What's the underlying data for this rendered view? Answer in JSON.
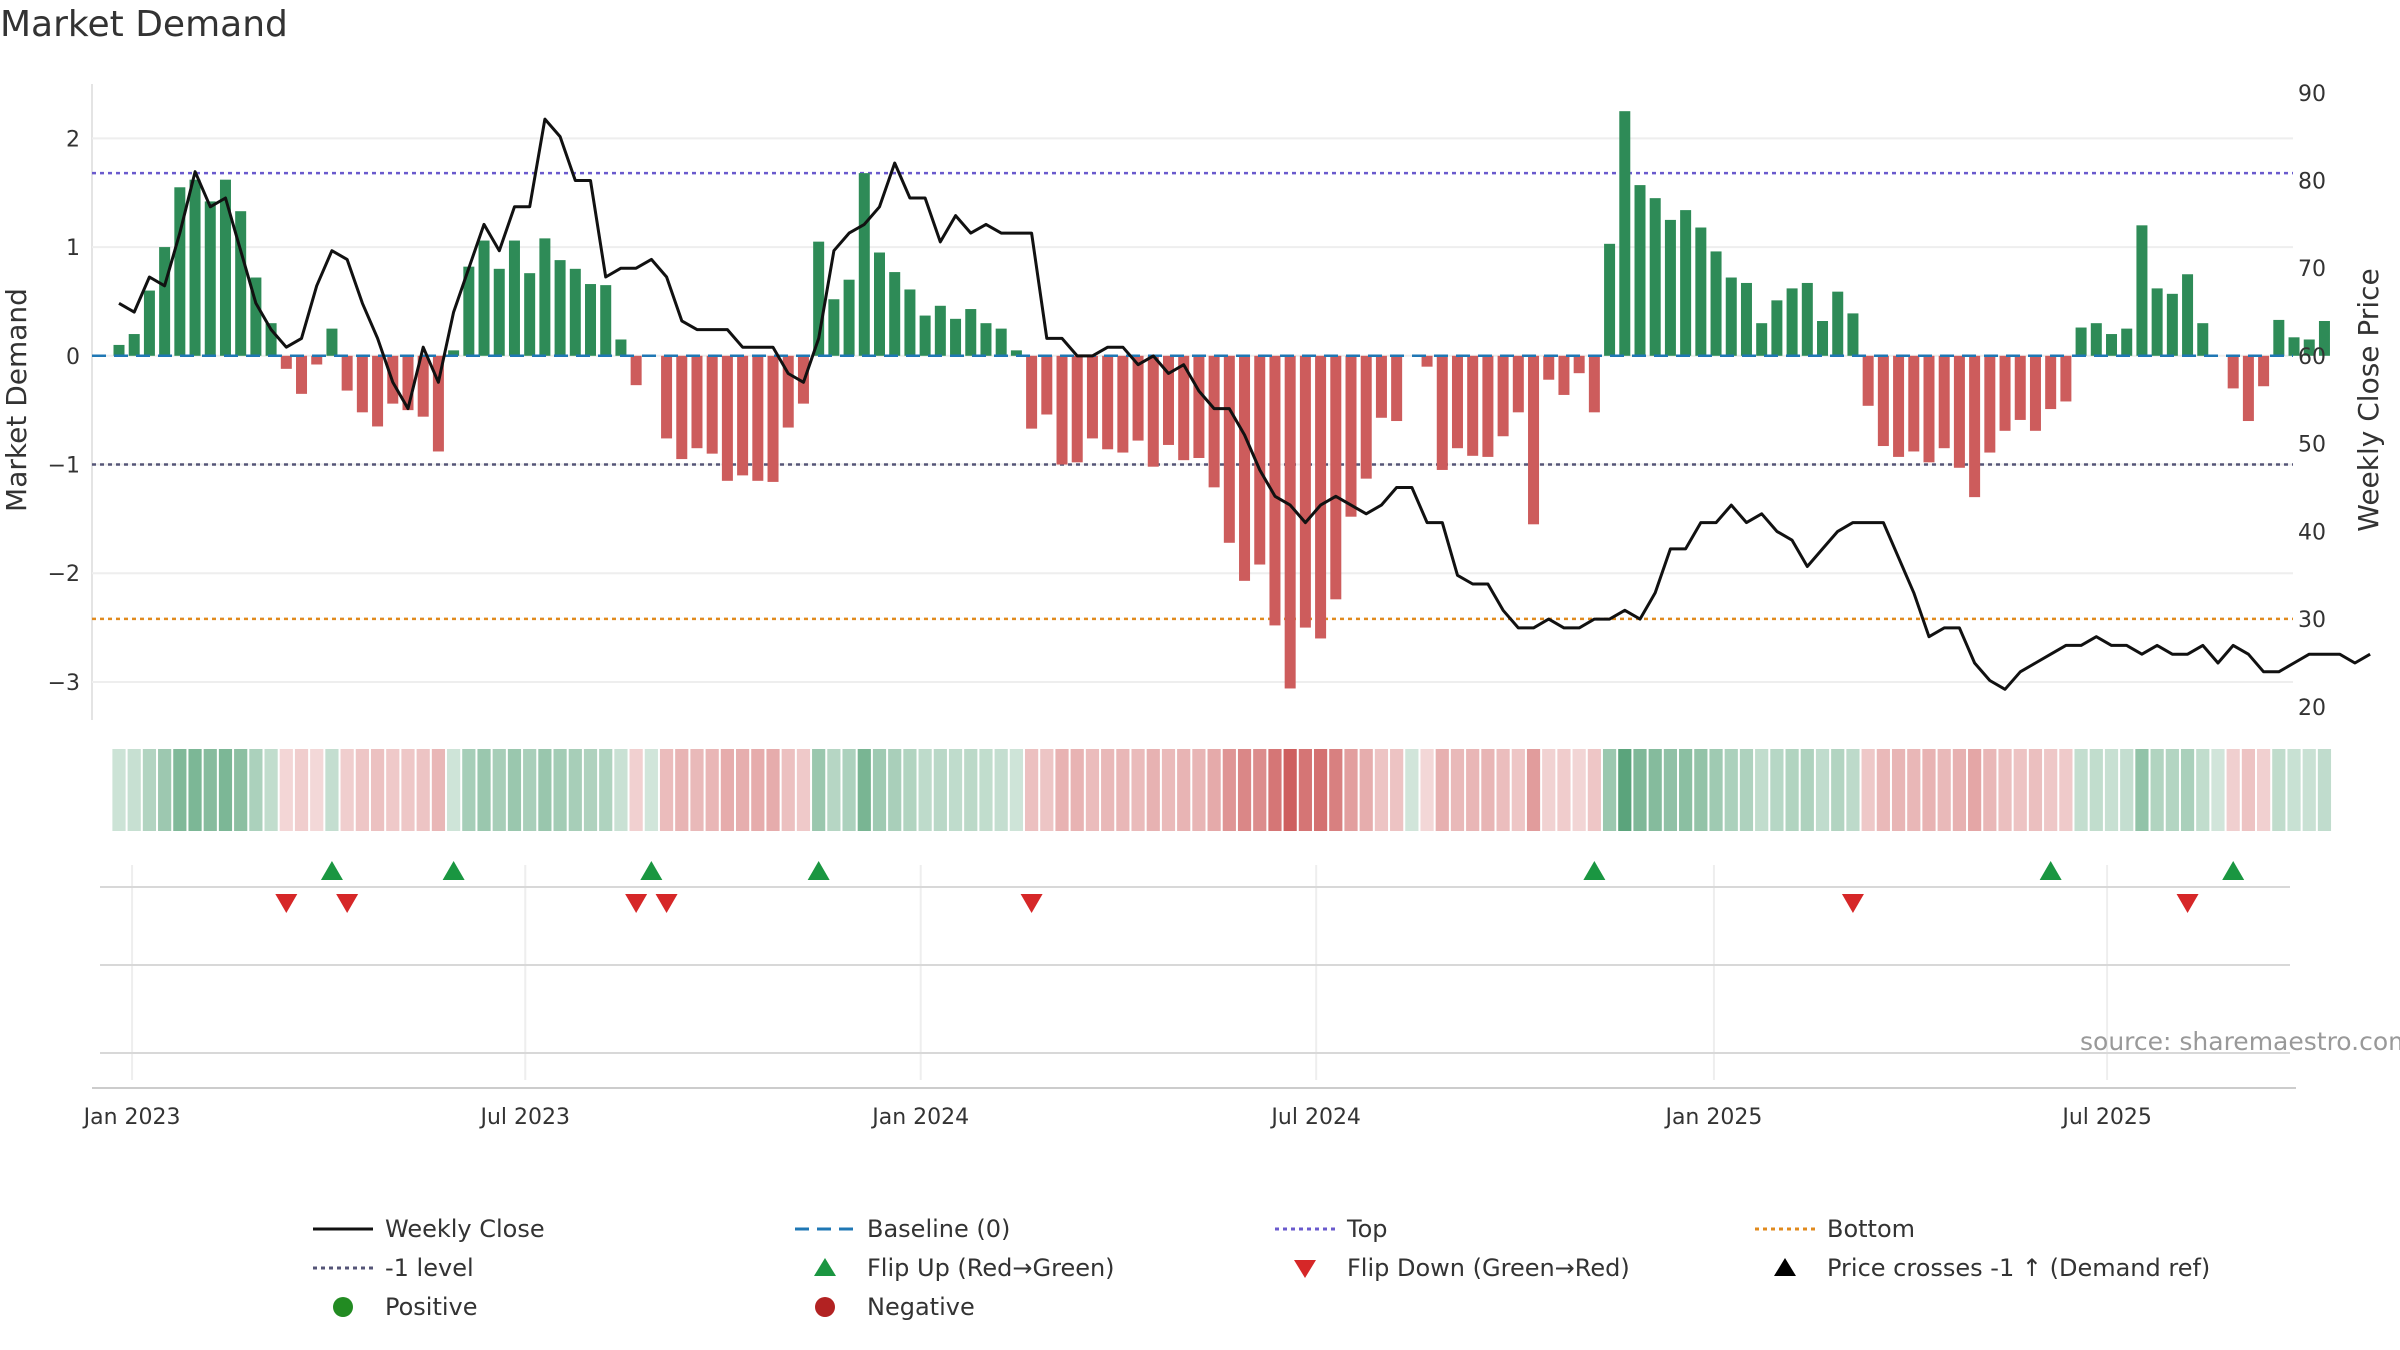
{
  "title": "Market Demand",
  "source": "source: sharemaestro.com",
  "colors": {
    "positive": "#2e8b57",
    "negative": "#cd5c5c",
    "price": "#111111",
    "baseline": "#1f77b4",
    "top": "#6a5acd",
    "minus_one": "#555577",
    "bottom": "#e08a1e",
    "flip_up": "#1a9641",
    "flip_down": "#d62728"
  },
  "chart_data": {
    "type": "bar",
    "start_date": "2022-12-26",
    "interval_days": 7,
    "demand": [
      0.1,
      0.2,
      0.6,
      1.0,
      1.55,
      1.62,
      1.42,
      1.62,
      1.33,
      0.72,
      0.3,
      -0.12,
      -0.35,
      -0.08,
      0.25,
      -0.32,
      -0.52,
      -0.65,
      -0.44,
      -0.5,
      -0.56,
      -0.88,
      0.05,
      0.82,
      1.06,
      0.8,
      1.06,
      0.76,
      1.08,
      0.88,
      0.8,
      0.66,
      0.65,
      0.15,
      -0.27,
      0.0,
      -0.76,
      -0.95,
      -0.85,
      -0.9,
      -1.15,
      -1.1,
      -1.15,
      -1.16,
      -0.66,
      -0.44,
      1.05,
      0.52,
      0.7,
      1.68,
      0.95,
      0.77,
      0.61,
      0.37,
      0.46,
      0.34,
      0.43,
      0.3,
      0.25,
      0.05,
      -0.67,
      -0.54,
      -1.0,
      -0.98,
      -0.76,
      -0.86,
      -0.89,
      -0.78,
      -1.02,
      -0.82,
      -0.96,
      -0.94,
      -1.21,
      -1.72,
      -2.07,
      -1.92,
      -2.48,
      -3.06,
      -2.5,
      -2.6,
      -2.24,
      -1.48,
      -1.13,
      -0.57,
      -0.6,
      0.0,
      -0.1,
      -1.05,
      -0.85,
      -0.92,
      -0.93,
      -0.74,
      -0.52,
      -1.55,
      -0.22,
      -0.36,
      -0.16,
      -0.52,
      1.03,
      2.25,
      1.57,
      1.45,
      1.25,
      1.34,
      1.18,
      0.96,
      0.72,
      0.67,
      0.3,
      0.51,
      0.62,
      0.67,
      0.32,
      0.59,
      0.39,
      -0.46,
      -0.83,
      -0.93,
      -0.88,
      -0.98,
      -0.85,
      -1.03,
      -1.3,
      -0.89,
      -0.69,
      -0.59,
      -0.69,
      -0.49,
      -0.42,
      0.26,
      0.3,
      0.2,
      0.25,
      1.2,
      0.62,
      0.57,
      0.75,
      0.3,
      0.0,
      -0.3,
      -0.6,
      -0.28,
      0.33,
      0.17,
      0.15,
      0.32
    ],
    "price": [
      66,
      65,
      69,
      68,
      74,
      81,
      77,
      78,
      72,
      66,
      63,
      61,
      62,
      68,
      72,
      71,
      66,
      62,
      57,
      54,
      61,
      57,
      65,
      70,
      75,
      72,
      77,
      77,
      87,
      85,
      80,
      80,
      69,
      70,
      70,
      71,
      69,
      64,
      63,
      63,
      63,
      61,
      61,
      61,
      58,
      57,
      62,
      72,
      74,
      75,
      77,
      82,
      78,
      78,
      73,
      76,
      74,
      75,
      74,
      74,
      74,
      62,
      62,
      60,
      60,
      61,
      61,
      59,
      60,
      58,
      59,
      56,
      54,
      54,
      51,
      47,
      44,
      43,
      41,
      43,
      44,
      43,
      42,
      43,
      45,
      45,
      41,
      41,
      35,
      34,
      34,
      31,
      29,
      29,
      30,
      29,
      29,
      30,
      30,
      31,
      30,
      33,
      38,
      38,
      41,
      41,
      43,
      41,
      42,
      40,
      39,
      36,
      38,
      40,
      41,
      41,
      41,
      37,
      33,
      28,
      29,
      29,
      25,
      23,
      22,
      24,
      25,
      26,
      27,
      27,
      28,
      27,
      27,
      26,
      27,
      26,
      26,
      27,
      25,
      27,
      26,
      24,
      24,
      25,
      26,
      26,
      26,
      25,
      26
    ],
    "title": "Market Demand",
    "ylabel_left": "Market Demand",
    "ylabel_right": "Weekly Close Price",
    "ylim_left": [
      -3.35,
      2.5
    ],
    "ylim_right": [
      18.5,
      91
    ],
    "yticks_left": [
      2,
      1,
      0,
      -1,
      -2,
      -3
    ],
    "ytick_labels_left": [
      "2",
      "1",
      "0",
      "−1",
      "−2",
      "−3"
    ],
    "yticks_right": [
      90,
      80,
      70,
      60,
      50,
      40,
      30,
      20
    ],
    "ytick_labels_right": [
      "90",
      "80",
      "70",
      "60",
      "50",
      "40",
      "30",
      "20"
    ],
    "x_tick_labels": [
      "Jan 2023",
      "Jul 2023",
      "Jan 2024",
      "Jul 2024",
      "Jan 2025",
      "Jul 2025"
    ],
    "x_tick_index": [
      0.86,
      26.71,
      52.71,
      78.71,
      104.86,
      130.71
    ],
    "reference_lines": {
      "baseline": 0,
      "top": 1.68,
      "minus_one": -1,
      "bottom": -2.42
    },
    "flip_up_index": [
      14,
      22,
      35,
      46,
      97,
      127,
      139
    ],
    "flip_down_index": [
      11,
      15,
      34,
      36,
      60,
      114,
      136
    ],
    "price_cross_index": []
  },
  "legend": [
    {
      "label": "Weekly Close",
      "icon": "solid-line",
      "color": "#111111"
    },
    {
      "label": "Baseline (0)",
      "icon": "dashed-line",
      "color": "#1f77b4"
    },
    {
      "label": "Top",
      "icon": "dotted-line",
      "color": "#6a5acd"
    },
    {
      "label": "Bottom",
      "icon": "dotted-line",
      "color": "#e08a1e"
    },
    {
      "label": "-1 level",
      "icon": "dotted-line",
      "color": "#555577"
    },
    {
      "label": "Flip Up (Red→Green)",
      "icon": "triangle-up",
      "color": "#1a9641"
    },
    {
      "label": "Flip Down (Green→Red)",
      "icon": "triangle-down",
      "color": "#d62728"
    },
    {
      "label": "Price crosses -1 ↑ (Demand ref)",
      "icon": "triangle-up",
      "color": "#000000"
    },
    {
      "label": "Positive",
      "icon": "circle",
      "color": "#228b22"
    },
    {
      "label": "Negative",
      "icon": "circle",
      "color": "#b22222"
    }
  ]
}
